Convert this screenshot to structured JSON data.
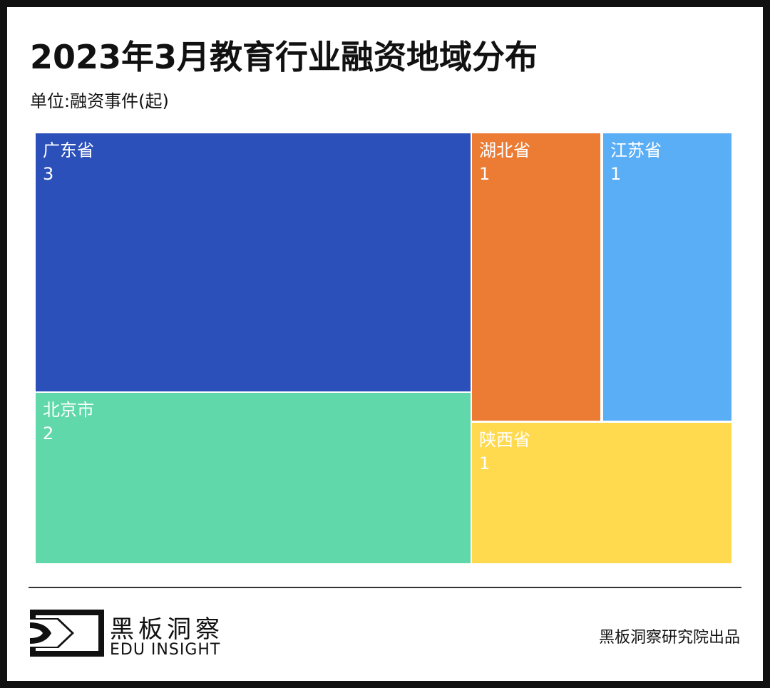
{
  "header": {
    "title": "2023年3月教育行业融资地域分布",
    "unit": "单位:融资事件(起)"
  },
  "chart_data": {
    "type": "treemap",
    "title": "2023年3月教育行业融资地域分布",
    "unit": "单位:融资事件(起)",
    "items": [
      {
        "name": "广东省",
        "value": 3,
        "color": "#2B50BA"
      },
      {
        "name": "北京市",
        "value": 2,
        "color": "#60D8AA"
      },
      {
        "name": "湖北省",
        "value": 1,
        "color": "#EC7B33"
      },
      {
        "name": "江苏省",
        "value": 1,
        "color": "#5AAEF5"
      },
      {
        "name": "陕西省",
        "value": 1,
        "color": "#FFDA4F"
      }
    ]
  },
  "footer": {
    "logo_cn": "黑板洞察",
    "logo_en": "EDU INSIGHT",
    "credit": "黑板洞察研究院出品"
  }
}
